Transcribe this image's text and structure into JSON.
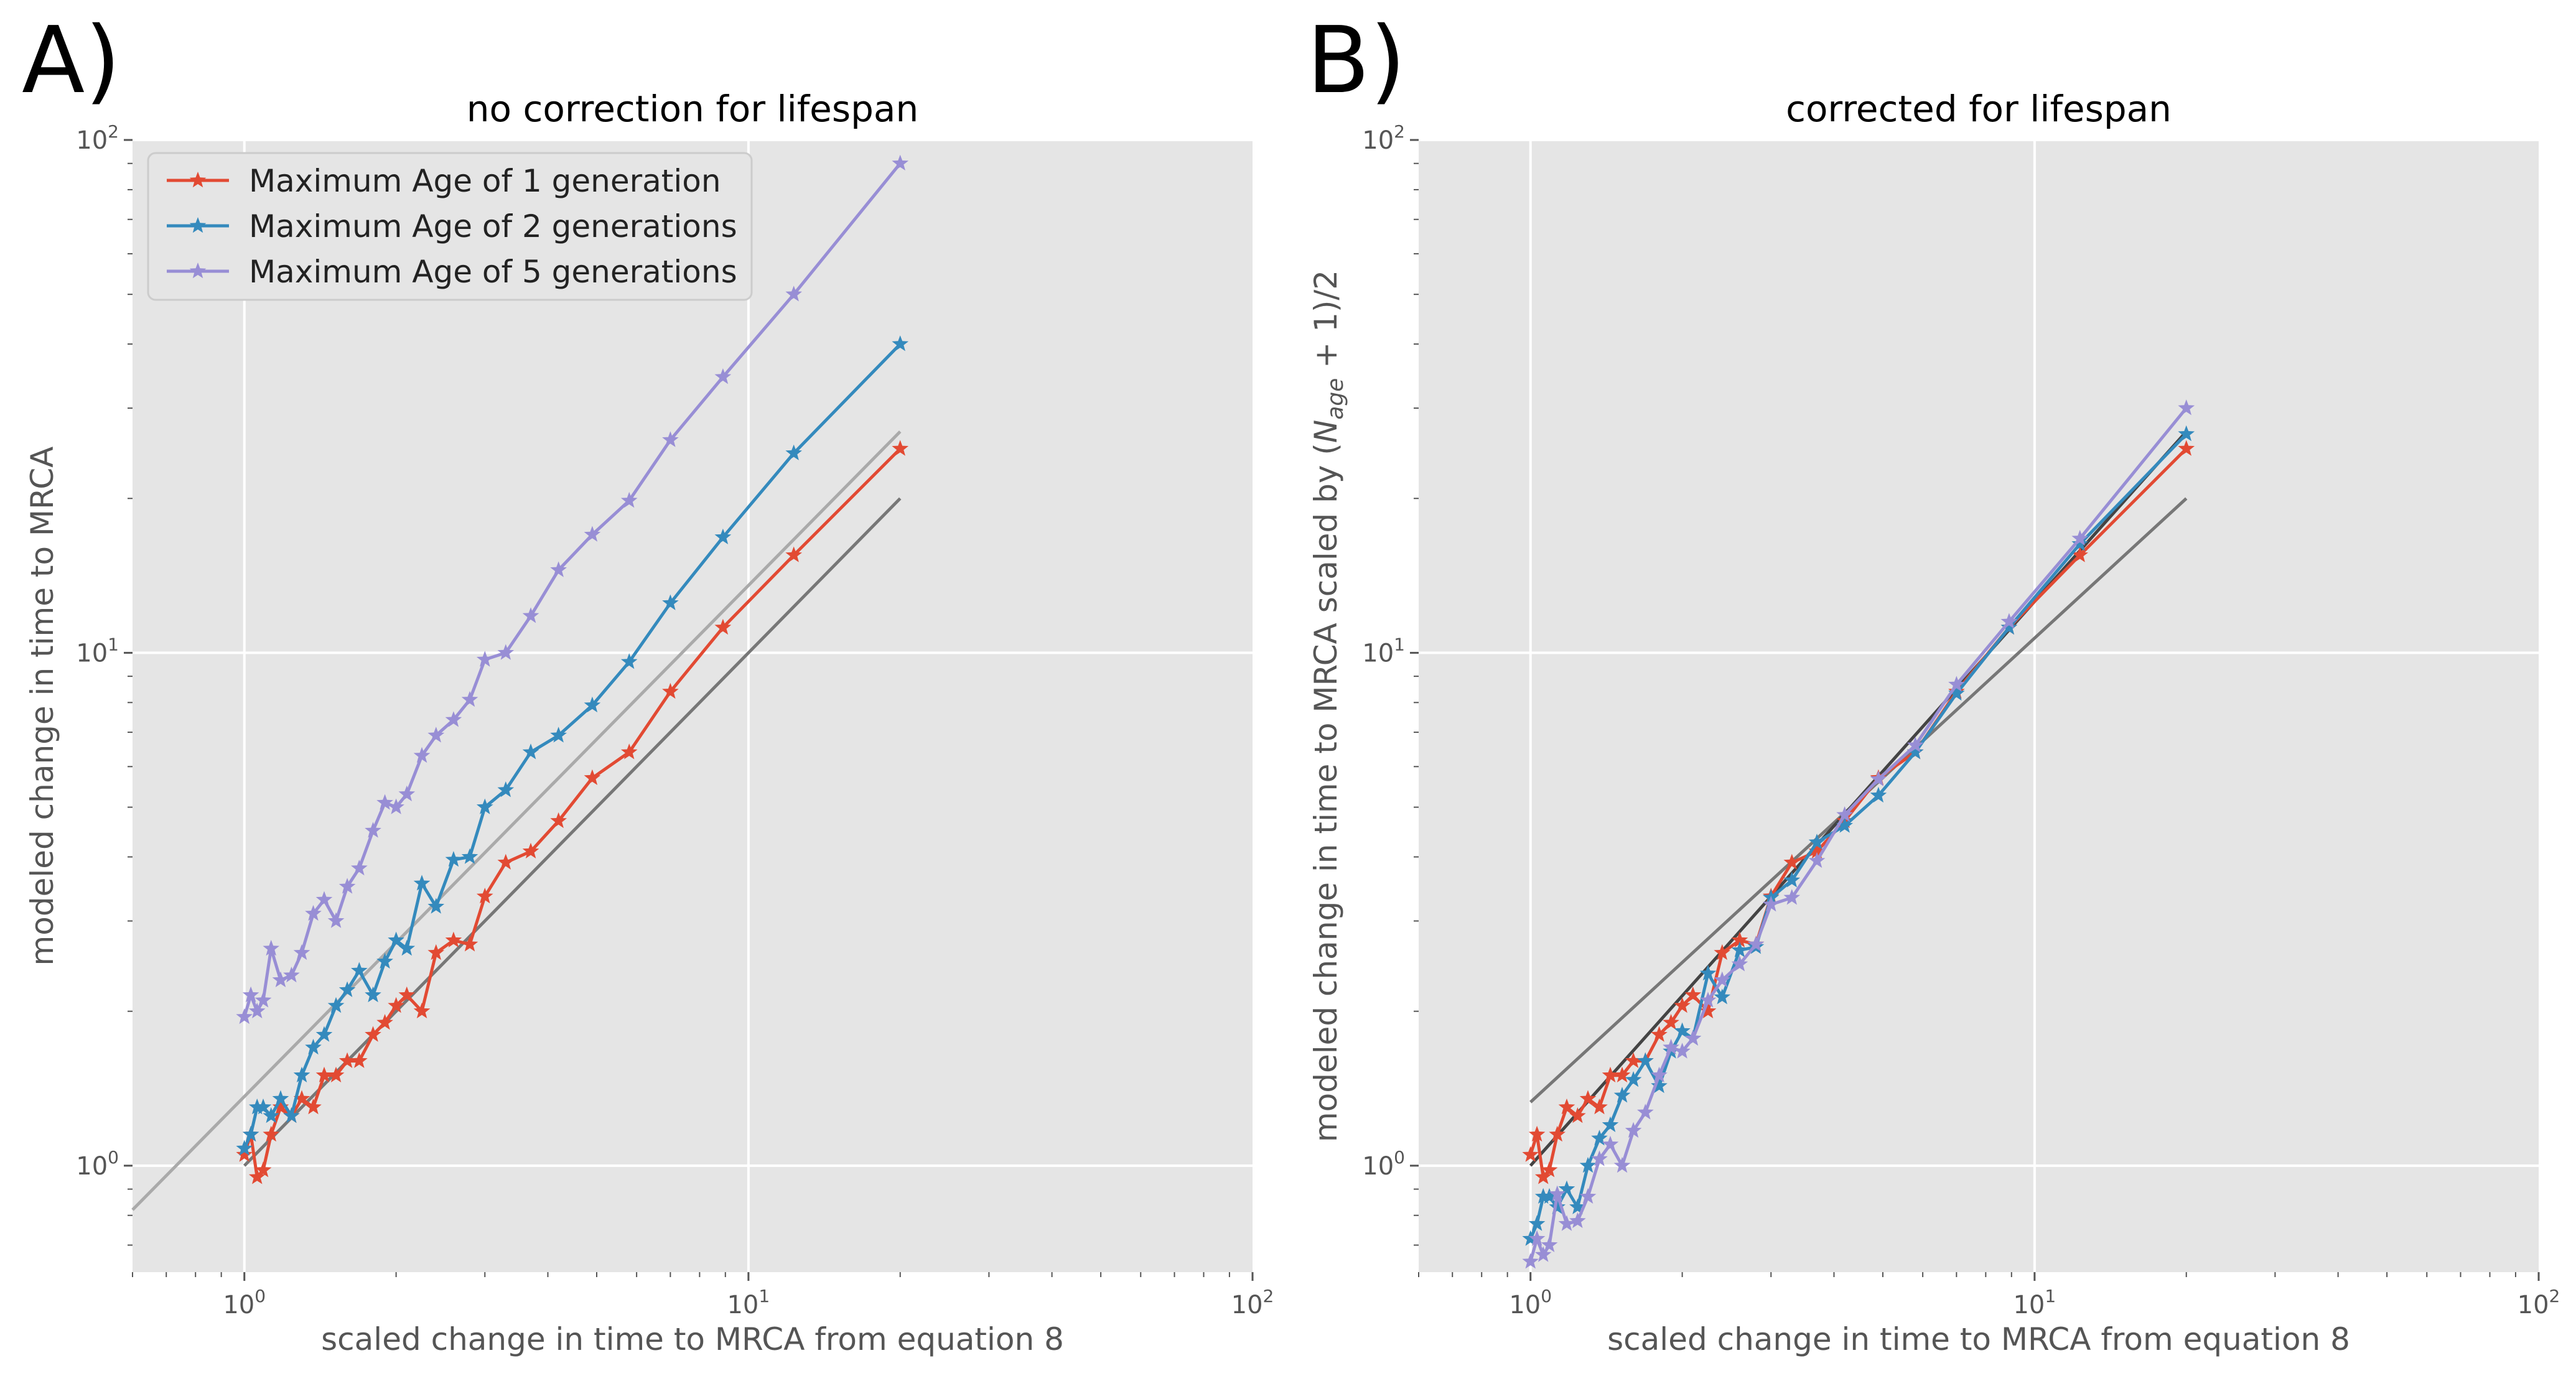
{
  "panels": [
    {
      "letter": "A)",
      "title": "no correction for lifespan",
      "xlabel": "scaled change in time to MRCA from equation 8",
      "ylabel": "modeled change in time to MRCA",
      "legend": [
        "Maximum Age of 1 generation",
        "Maximum Age of 2 generations",
        "Maximum Age of 5 generations"
      ]
    },
    {
      "letter": "B)",
      "title": "corrected for lifespan",
      "xlabel": "scaled change in time to MRCA from equation 8",
      "ylabel_main": "modeled change in time to MRCA scaled by (",
      "ylabel_var": "N",
      "ylabel_sub": "age",
      "ylabel_tail": " + 1)/2"
    }
  ],
  "ticks": {
    "x": [
      {
        "value": 1,
        "base": "10",
        "exp": "0"
      },
      {
        "value": 10,
        "base": "10",
        "exp": "1"
      },
      {
        "value": 100,
        "base": "10",
        "exp": "2"
      }
    ],
    "y": [
      {
        "value": 1,
        "base": "10",
        "exp": "0"
      },
      {
        "value": 10,
        "base": "10",
        "exp": "1"
      },
      {
        "value": 100,
        "base": "10",
        "exp": "2"
      }
    ]
  },
  "colors": {
    "age1": "#e24a33",
    "age2": "#348abd",
    "age5": "#988ed5",
    "reference": "#777777",
    "fit": "#aaaaaa",
    "plot_bg": "#e5e5e5",
    "grid": "#ffffff"
  },
  "chart_data": [
    {
      "type": "line",
      "title": "no correction for lifespan",
      "xlabel": "scaled change in time to MRCA from equation 8",
      "ylabel": "modeled change in time to MRCA",
      "xscale": "log",
      "yscale": "log",
      "xlim": [
        0.6,
        100
      ],
      "ylim": [
        0.62,
        100
      ],
      "grid": true,
      "legend_position": "top-left",
      "reference_lines": [
        {
          "x": [
            1,
            20
          ],
          "y": [
            1,
            20
          ],
          "color": "#777777"
        },
        {
          "x": [
            0.6,
            20
          ],
          "y": [
            0.82,
            27
          ],
          "color": "#aaaaaa"
        }
      ],
      "series": [
        {
          "name": "Maximum Age of 1 generation",
          "color": "#e24a33",
          "x": [
            1.0,
            1.03,
            1.06,
            1.09,
            1.13,
            1.18,
            1.24,
            1.3,
            1.37,
            1.44,
            1.52,
            1.6,
            1.69,
            1.8,
            1.9,
            2.0,
            2.1,
            2.25,
            2.4,
            2.6,
            2.8,
            3.0,
            3.3,
            3.7,
            4.2,
            4.9,
            5.8,
            7.0,
            8.9,
            12.3,
            20.0
          ],
          "y": [
            1.05,
            1.15,
            0.95,
            0.98,
            1.15,
            1.3,
            1.25,
            1.35,
            1.3,
            1.5,
            1.5,
            1.6,
            1.6,
            1.8,
            1.9,
            2.05,
            2.15,
            2.0,
            2.6,
            2.75,
            2.7,
            3.35,
            3.9,
            4.1,
            4.7,
            5.7,
            6.4,
            8.4,
            11.2,
            15.5,
            25.0
          ]
        },
        {
          "name": "Maximum Age of 2 generations",
          "color": "#348abd",
          "x": [
            1.0,
            1.03,
            1.06,
            1.09,
            1.13,
            1.18,
            1.24,
            1.3,
            1.37,
            1.44,
            1.52,
            1.6,
            1.69,
            1.8,
            1.9,
            2.0,
            2.1,
            2.25,
            2.4,
            2.6,
            2.8,
            3.0,
            3.3,
            3.7,
            4.2,
            4.9,
            5.8,
            7.0,
            8.9,
            12.3,
            20.0
          ],
          "y": [
            1.08,
            1.15,
            1.3,
            1.3,
            1.25,
            1.35,
            1.25,
            1.5,
            1.7,
            1.8,
            2.05,
            2.2,
            2.4,
            2.15,
            2.5,
            2.75,
            2.65,
            3.55,
            3.2,
            3.95,
            4.0,
            5.0,
            5.4,
            6.4,
            6.9,
            7.9,
            9.6,
            12.5,
            16.8,
            24.5,
            40.0
          ]
        },
        {
          "name": "Maximum Age of 5 generations",
          "color": "#988ed5",
          "x": [
            1.0,
            1.03,
            1.06,
            1.09,
            1.13,
            1.18,
            1.24,
            1.3,
            1.37,
            1.44,
            1.52,
            1.6,
            1.69,
            1.8,
            1.9,
            2.0,
            2.1,
            2.25,
            2.4,
            2.6,
            2.8,
            3.0,
            3.3,
            3.7,
            4.2,
            4.9,
            5.8,
            7.0,
            8.9,
            12.3,
            20.0
          ],
          "y": [
            1.95,
            2.15,
            2.0,
            2.1,
            2.65,
            2.3,
            2.35,
            2.6,
            3.1,
            3.3,
            3.0,
            3.5,
            3.8,
            4.5,
            5.1,
            5.0,
            5.3,
            6.3,
            6.9,
            7.4,
            8.1,
            9.7,
            10.0,
            11.8,
            14.5,
            17.0,
            19.8,
            26.0,
            34.5,
            50.0,
            90.0
          ]
        }
      ]
    },
    {
      "type": "line",
      "title": "corrected for lifespan",
      "xlabel": "scaled change in time to MRCA from equation 8",
      "ylabel": "modeled change in time to MRCA scaled by (Nage + 1)/2",
      "xscale": "log",
      "yscale": "log",
      "xlim": [
        0.6,
        100
      ],
      "ylim": [
        0.62,
        100
      ],
      "grid": true,
      "reference_lines": [
        {
          "x": [
            1,
            20
          ],
          "y": [
            1.33,
            20
          ],
          "color": "#777777"
        },
        {
          "x": [
            1,
            20
          ],
          "y": [
            1.0,
            27
          ],
          "color": "#444444"
        }
      ],
      "series": [
        {
          "name": "Maximum Age of 1 generation",
          "color": "#e24a33",
          "x": [
            1.0,
            1.03,
            1.06,
            1.09,
            1.13,
            1.18,
            1.24,
            1.3,
            1.37,
            1.44,
            1.52,
            1.6,
            1.69,
            1.8,
            1.9,
            2.0,
            2.1,
            2.25,
            2.4,
            2.6,
            2.8,
            3.0,
            3.3,
            3.7,
            4.2,
            4.9,
            5.8,
            7.0,
            8.9,
            12.3,
            20.0
          ],
          "y": [
            1.05,
            1.15,
            0.95,
            0.98,
            1.15,
            1.3,
            1.25,
            1.35,
            1.3,
            1.5,
            1.5,
            1.6,
            1.6,
            1.8,
            1.9,
            2.05,
            2.15,
            2.0,
            2.6,
            2.75,
            2.7,
            3.35,
            3.9,
            4.1,
            4.7,
            5.7,
            6.4,
            8.4,
            11.2,
            15.5,
            25.0
          ]
        },
        {
          "name": "Maximum Age of 2 generations",
          "color": "#348abd",
          "x": [
            1.0,
            1.03,
            1.06,
            1.09,
            1.13,
            1.18,
            1.24,
            1.3,
            1.37,
            1.44,
            1.52,
            1.6,
            1.69,
            1.8,
            1.9,
            2.0,
            2.1,
            2.25,
            2.4,
            2.6,
            2.8,
            3.0,
            3.3,
            3.7,
            4.2,
            4.9,
            5.8,
            7.0,
            8.9,
            12.3,
            20.0
          ],
          "y": [
            0.72,
            0.77,
            0.87,
            0.87,
            0.83,
            0.9,
            0.83,
            1.0,
            1.13,
            1.2,
            1.37,
            1.47,
            1.6,
            1.43,
            1.67,
            1.83,
            1.77,
            2.37,
            2.13,
            2.63,
            2.67,
            3.33,
            3.6,
            4.27,
            4.6,
            5.27,
            6.4,
            8.33,
            11.2,
            16.3,
            26.7
          ]
        },
        {
          "name": "Maximum Age of 5 generations",
          "color": "#988ed5",
          "x": [
            1.0,
            1.03,
            1.06,
            1.09,
            1.13,
            1.18,
            1.24,
            1.3,
            1.37,
            1.44,
            1.52,
            1.6,
            1.69,
            1.8,
            1.9,
            2.0,
            2.1,
            2.25,
            2.4,
            2.6,
            2.8,
            3.0,
            3.3,
            3.7,
            4.2,
            4.9,
            5.8,
            7.0,
            8.9,
            12.3,
            20.0
          ],
          "y": [
            0.65,
            0.72,
            0.67,
            0.7,
            0.88,
            0.77,
            0.78,
            0.87,
            1.03,
            1.1,
            1.0,
            1.17,
            1.27,
            1.5,
            1.7,
            1.67,
            1.77,
            2.1,
            2.3,
            2.47,
            2.7,
            3.23,
            3.33,
            3.93,
            4.83,
            5.67,
            6.6,
            8.67,
            11.5,
            16.7,
            30.0
          ]
        }
      ]
    }
  ]
}
